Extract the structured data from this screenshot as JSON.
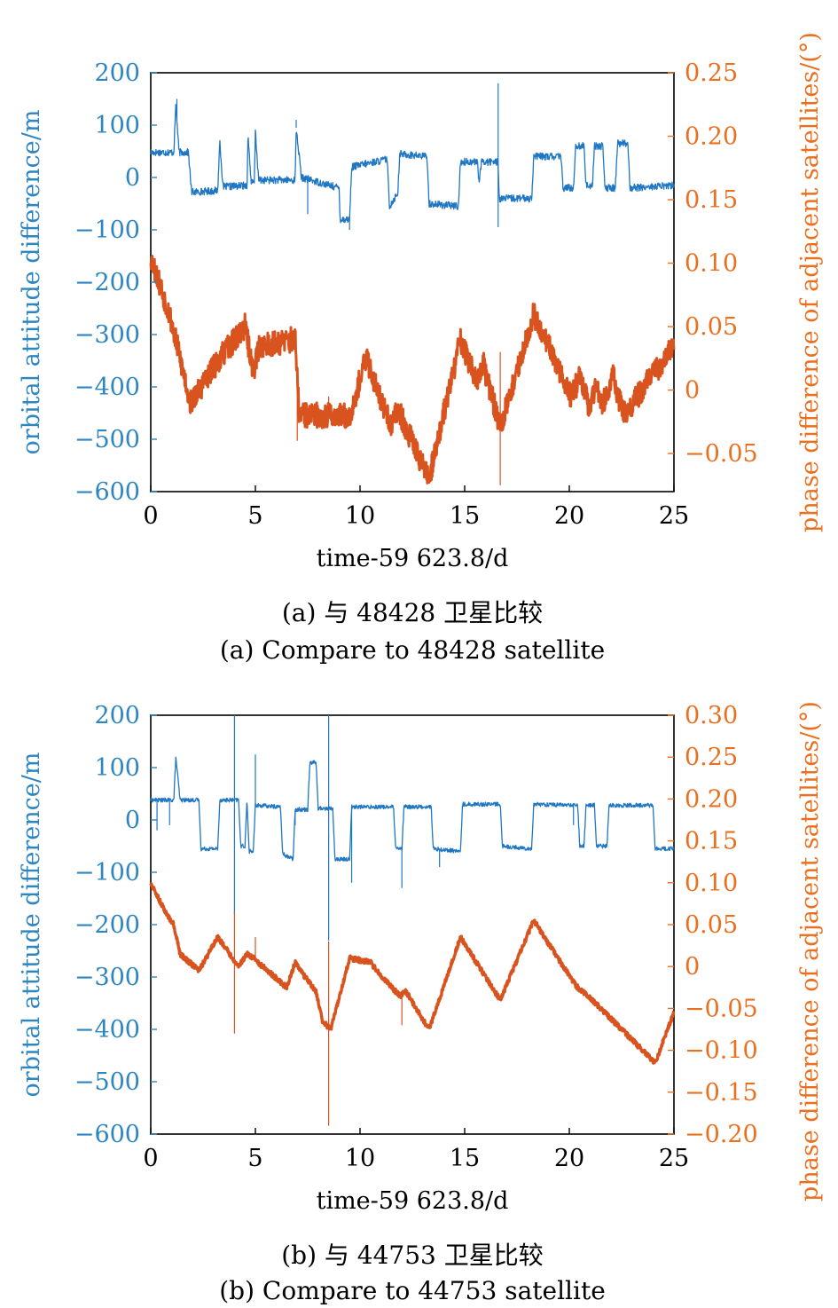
{
  "colors": {
    "left_axis": "#2e86c1",
    "right_axis": "#ea7020",
    "series_alt": "#1f77c4",
    "series_phase": "#d9531e",
    "frame": "#000000"
  },
  "chart_data": [
    {
      "type": "line",
      "caption_cn": "(a) 与 48428 卫星比较",
      "caption_en": "(a) Compare to 48428 satellite",
      "xlabel": "time-59 623.8/d",
      "ylabel_left": "orbital attitude difference/m",
      "ylabel_right": "phase difference of adjacent satellites/(°)",
      "xlim": [
        0,
        25
      ],
      "ylim_left": [
        -600,
        200
      ],
      "ylim_right": [
        -0.08,
        0.25
      ],
      "xticks": [
        0,
        5,
        10,
        15,
        20,
        25
      ],
      "xtick_labels": [
        "0",
        "5",
        "10",
        "15",
        "20",
        "25"
      ],
      "yticks_left": [
        200,
        100,
        0,
        -100,
        -200,
        -300,
        -400,
        -500,
        -600
      ],
      "ytick_labels_left": [
        "200",
        "100",
        "0",
        "−100",
        "−200",
        "−300",
        "−400",
        "−500",
        "−600"
      ],
      "yticks_right": [
        0.25,
        0.2,
        0.15,
        0.1,
        0.05,
        0,
        -0.05
      ],
      "ytick_labels_right": [
        "0.25",
        "0.20",
        "0.15",
        "0.10",
        "0.05",
        "0",
        "−0.05"
      ],
      "series": [
        {
          "name": "orbital attitude difference",
          "axis": "left",
          "noise": 7,
          "steps": [
            [
              0,
              48
            ],
            [
              1.1,
              48
            ],
            [
              1.2,
              140
            ],
            [
              1.35,
              48
            ],
            [
              1.8,
              48
            ],
            [
              1.95,
              -28
            ],
            [
              3.2,
              -25
            ],
            [
              3.3,
              70
            ],
            [
              3.45,
              -18
            ],
            [
              4.6,
              -15
            ],
            [
              4.65,
              80
            ],
            [
              4.8,
              -10
            ],
            [
              4.95,
              -10
            ],
            [
              5.0,
              90
            ],
            [
              5.15,
              -5
            ],
            [
              6.9,
              -5
            ],
            [
              6.95,
              95
            ],
            [
              7.2,
              0
            ],
            [
              9.0,
              -20
            ],
            [
              9.05,
              -80
            ],
            [
              9.5,
              -80
            ],
            [
              9.6,
              20
            ],
            [
              11.3,
              35
            ],
            [
              11.4,
              -55
            ],
            [
              11.8,
              -30
            ],
            [
              11.9,
              45
            ],
            [
              13.2,
              40
            ],
            [
              13.3,
              -50
            ],
            [
              14.7,
              -55
            ],
            [
              14.8,
              30
            ],
            [
              15.6,
              30
            ],
            [
              15.7,
              -10
            ],
            [
              15.8,
              30
            ],
            [
              16.6,
              30
            ],
            [
              16.65,
              -40
            ],
            [
              18.2,
              -40
            ],
            [
              18.3,
              40
            ],
            [
              19.6,
              40
            ],
            [
              19.7,
              -20
            ],
            [
              20.2,
              -20
            ],
            [
              20.3,
              60
            ],
            [
              20.7,
              60
            ],
            [
              20.8,
              -15
            ],
            [
              21.1,
              -15
            ],
            [
              21.2,
              60
            ],
            [
              21.6,
              60
            ],
            [
              21.7,
              -20
            ],
            [
              22.2,
              -20
            ],
            [
              22.3,
              65
            ],
            [
              22.8,
              65
            ],
            [
              22.9,
              -20
            ],
            [
              25,
              -15
            ]
          ],
          "spikes": [
            [
              1.25,
              150
            ],
            [
              6.95,
              110
            ],
            [
              7.5,
              -70
            ],
            [
              9.5,
              -100
            ],
            [
              16.6,
              180
            ],
            [
              16.6,
              -95
            ]
          ]
        },
        {
          "name": "phase difference of adjacent satellites",
          "axis": "right",
          "band": 0.01,
          "x": [
            0,
            0.9,
            1.9,
            3.1,
            3.3,
            4.5,
            4.9,
            5.2,
            6.9,
            7.1,
            9.5,
            10.3,
            11.5,
            11.8,
            13.3,
            14.8,
            15.6,
            15.9,
            16.7,
            18.3,
            20.1,
            20.5,
            21.0,
            21.3,
            21.6,
            22.1,
            22.6,
            25
          ],
          "values": [
            0.105,
            0.06,
            -0.01,
            0.02,
            0.025,
            0.05,
            0.015,
            0.035,
            0.04,
            -0.02,
            -0.02,
            0.025,
            -0.03,
            -0.015,
            -0.07,
            0.04,
            0.005,
            0.02,
            -0.03,
            0.06,
            -0.005,
            0.01,
            -0.015,
            0.005,
            -0.01,
            0.01,
            -0.02,
            0.035
          ],
          "spikes": [
            [
              4.0,
              0.045
            ],
            [
              7.0,
              -0.04
            ],
            [
              8.5,
              -0.005
            ],
            [
              16.7,
              0.03
            ],
            [
              16.7,
              -0.075
            ]
          ]
        }
      ]
    },
    {
      "type": "line",
      "caption_cn": "(b) 与 44753 卫星比较",
      "caption_en": "(b) Compare to 44753 satellite",
      "xlabel": "time-59 623.8/d",
      "ylabel_left": "orbital attitude difference/m",
      "ylabel_right": "phase difference of adjacent satellites/(°)",
      "xlim": [
        0,
        25
      ],
      "ylim_left": [
        -600,
        200
      ],
      "ylim_right": [
        -0.2,
        0.3
      ],
      "xticks": [
        0,
        5,
        10,
        15,
        20,
        25
      ],
      "xtick_labels": [
        "0",
        "5",
        "10",
        "15",
        "20",
        "25"
      ],
      "yticks_left": [
        200,
        100,
        0,
        -100,
        -200,
        -300,
        -400,
        -500,
        -600
      ],
      "ytick_labels_left": [
        "200",
        "100",
        "0",
        "−100",
        "−200",
        "−300",
        "−400",
        "−500",
        "−600"
      ],
      "yticks_right": [
        0.3,
        0.25,
        0.2,
        0.15,
        0.1,
        0.05,
        0,
        -0.05,
        -0.1,
        -0.15,
        -0.2
      ],
      "ytick_labels_right": [
        "0.30",
        "0.25",
        "0.20",
        "0.15",
        "0.10",
        "0.05",
        "0",
        "−0.05",
        "−0.10",
        "−0.15",
        "−0.20"
      ],
      "series": [
        {
          "name": "orbital attitude difference",
          "axis": "left",
          "noise": 4,
          "steps": [
            [
              0,
              38
            ],
            [
              1.1,
              38
            ],
            [
              1.2,
              120
            ],
            [
              1.4,
              38
            ],
            [
              2.3,
              38
            ],
            [
              2.4,
              -55
            ],
            [
              3.2,
              -55
            ],
            [
              3.3,
              38
            ],
            [
              4.2,
              38
            ],
            [
              4.3,
              -50
            ],
            [
              4.5,
              -50
            ],
            [
              4.6,
              38
            ],
            [
              4.7,
              -60
            ],
            [
              4.9,
              -60
            ],
            [
              5.0,
              28
            ],
            [
              6.2,
              25
            ],
            [
              6.3,
              -65
            ],
            [
              6.8,
              -75
            ],
            [
              6.9,
              20
            ],
            [
              7.5,
              20
            ],
            [
              7.6,
              110
            ],
            [
              7.9,
              110
            ],
            [
              8.0,
              22
            ],
            [
              8.7,
              22
            ],
            [
              8.8,
              -75
            ],
            [
              9.5,
              -75
            ],
            [
              9.6,
              25
            ],
            [
              11.6,
              25
            ],
            [
              11.7,
              -55
            ],
            [
              12.0,
              -55
            ],
            [
              12.1,
              25
            ],
            [
              13.4,
              25
            ],
            [
              13.5,
              -55
            ],
            [
              14.8,
              -60
            ],
            [
              14.9,
              30
            ],
            [
              16.7,
              30
            ],
            [
              16.8,
              -50
            ],
            [
              18.2,
              -55
            ],
            [
              18.3,
              30
            ],
            [
              20.4,
              28
            ],
            [
              20.5,
              -50
            ],
            [
              20.7,
              -50
            ],
            [
              20.8,
              28
            ],
            [
              21.2,
              28
            ],
            [
              21.3,
              -50
            ],
            [
              21.8,
              -50
            ],
            [
              21.9,
              28
            ],
            [
              24.0,
              28
            ],
            [
              24.1,
              -55
            ],
            [
              25,
              -55
            ]
          ],
          "spikes": [
            [
              0.3,
              -20
            ],
            [
              0.9,
              -10
            ],
            [
              4.0,
              200
            ],
            [
              4.0,
              -180
            ],
            [
              5.0,
              125
            ],
            [
              6.9,
              -10
            ],
            [
              8.5,
              200
            ],
            [
              8.5,
              -230
            ],
            [
              9.6,
              -120
            ],
            [
              12.0,
              -130
            ],
            [
              13.8,
              -90
            ],
            [
              20.2,
              -10
            ]
          ]
        },
        {
          "name": "phase difference of adjacent satellites",
          "axis": "right",
          "band": 0.003,
          "x": [
            0,
            0.8,
            1.1,
            1.4,
            2.3,
            3.2,
            4.2,
            4.6,
            4.9,
            6.5,
            6.9,
            7.3,
            7.9,
            8.2,
            8.6,
            9.5,
            10.5,
            10.8,
            11.9,
            12.2,
            13.3,
            14.8,
            16.7,
            18.3,
            20.1,
            20.4,
            20.9,
            21.5,
            24.1,
            25
          ],
          "values": [
            0.1,
            0.06,
            0.05,
            0.015,
            -0.005,
            0.035,
            0,
            0.015,
            0.01,
            -0.025,
            0.005,
            -0.01,
            -0.03,
            -0.065,
            -0.075,
            0.01,
            0.005,
            -0.005,
            -0.035,
            -0.03,
            -0.075,
            0.035,
            -0.04,
            0.055,
            -0.015,
            -0.025,
            -0.035,
            -0.05,
            -0.115,
            -0.055
          ],
          "spikes": [
            [
              4.0,
              0.065
            ],
            [
              4.0,
              -0.08
            ],
            [
              5.0,
              0.035
            ],
            [
              8.5,
              0.03
            ],
            [
              8.5,
              -0.19
            ],
            [
              12.0,
              -0.07
            ]
          ]
        }
      ]
    }
  ]
}
